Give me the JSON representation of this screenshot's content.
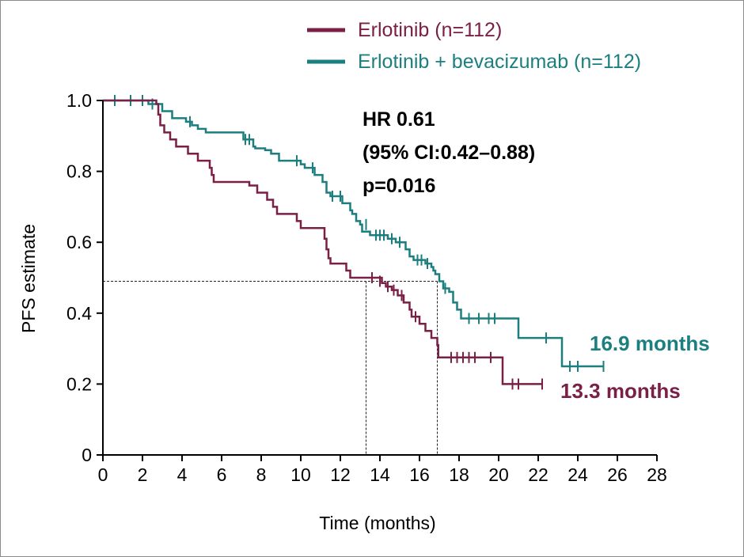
{
  "chart_data": {
    "type": "line",
    "subtype": "kaplan-meier",
    "xlabel": "Time (months)",
    "ylabel": "PFS estimate",
    "xlim": [
      0,
      28
    ],
    "ylim": [
      0,
      1
    ],
    "x_ticks": [
      "0",
      "2",
      "4",
      "6",
      "8",
      "10",
      "12",
      "14",
      "16",
      "18",
      "20",
      "22",
      "24",
      "26",
      "28"
    ],
    "y_ticks": [
      "0",
      "0.2",
      "0.4",
      "0.6",
      "0.8",
      "1.0"
    ],
    "legend_position": "top-right",
    "annotations": {
      "hr": "HR 0.61",
      "ci": "(95% CI:0.42–0.88)",
      "p": "p=0.016"
    },
    "median_reference_y": 0.49,
    "series": [
      {
        "name": "Erlotinib (n=112)",
        "color": "#7a1f45",
        "median_label": "13.3 months",
        "median_x": 13.3,
        "steps": [
          [
            0,
            1.0
          ],
          [
            2.7,
            0.99
          ],
          [
            2.8,
            0.96
          ],
          [
            2.9,
            0.93
          ],
          [
            3.1,
            0.91
          ],
          [
            3.4,
            0.89
          ],
          [
            3.7,
            0.87
          ],
          [
            4.3,
            0.85
          ],
          [
            4.8,
            0.83
          ],
          [
            5.4,
            0.81
          ],
          [
            5.5,
            0.79
          ],
          [
            5.6,
            0.77
          ],
          [
            7.4,
            0.76
          ],
          [
            7.8,
            0.74
          ],
          [
            8.3,
            0.72
          ],
          [
            8.6,
            0.7
          ],
          [
            8.8,
            0.68
          ],
          [
            9.8,
            0.66
          ],
          [
            10.0,
            0.64
          ],
          [
            11.2,
            0.61
          ],
          [
            11.3,
            0.58
          ],
          [
            11.4,
            0.555
          ],
          [
            11.5,
            0.54
          ],
          [
            12.3,
            0.52
          ],
          [
            12.5,
            0.5
          ],
          [
            14.1,
            0.485
          ],
          [
            14.3,
            0.475
          ],
          [
            14.6,
            0.465
          ],
          [
            14.9,
            0.45
          ],
          [
            15.2,
            0.43
          ],
          [
            15.5,
            0.41
          ],
          [
            15.6,
            0.39
          ],
          [
            16.0,
            0.37
          ],
          [
            16.3,
            0.35
          ],
          [
            16.6,
            0.33
          ],
          [
            16.9,
            0.31
          ],
          [
            16.95,
            0.275
          ],
          [
            20.2,
            0.2
          ]
        ],
        "end_x": 22.2,
        "censored": [
          [
            13.6,
            0.5
          ],
          [
            14.0,
            0.49
          ],
          [
            14.4,
            0.475
          ],
          [
            14.7,
            0.465
          ],
          [
            15.1,
            0.45
          ],
          [
            15.8,
            0.39
          ],
          [
            17.6,
            0.275
          ],
          [
            17.9,
            0.275
          ],
          [
            18.2,
            0.275
          ],
          [
            18.5,
            0.275
          ],
          [
            18.8,
            0.275
          ],
          [
            19.6,
            0.275
          ],
          [
            20.7,
            0.2
          ],
          [
            21.0,
            0.2
          ],
          [
            22.2,
            0.2
          ]
        ]
      },
      {
        "name": "Erlotinib + bevacizumab (n=112)",
        "color": "#1b7f80",
        "median_label": "16.9 months",
        "median_x": 16.9,
        "steps": [
          [
            0,
            1.0
          ],
          [
            2.3,
            0.99
          ],
          [
            3.0,
            0.97
          ],
          [
            3.5,
            0.95
          ],
          [
            4.2,
            0.94
          ],
          [
            4.5,
            0.93
          ],
          [
            4.8,
            0.92
          ],
          [
            5.2,
            0.91
          ],
          [
            7.1,
            0.89
          ],
          [
            7.6,
            0.87
          ],
          [
            7.7,
            0.865
          ],
          [
            8.2,
            0.86
          ],
          [
            8.5,
            0.85
          ],
          [
            8.9,
            0.83
          ],
          [
            10.0,
            0.82
          ],
          [
            10.2,
            0.81
          ],
          [
            10.7,
            0.79
          ],
          [
            11.1,
            0.77
          ],
          [
            11.3,
            0.74
          ],
          [
            11.5,
            0.73
          ],
          [
            12.1,
            0.71
          ],
          [
            12.5,
            0.69
          ],
          [
            12.6,
            0.68
          ],
          [
            12.8,
            0.66
          ],
          [
            13.0,
            0.65
          ],
          [
            13.1,
            0.63
          ],
          [
            13.5,
            0.62
          ],
          [
            14.4,
            0.61
          ],
          [
            14.8,
            0.6
          ],
          [
            15.3,
            0.58
          ],
          [
            15.5,
            0.56
          ],
          [
            15.7,
            0.55
          ],
          [
            16.3,
            0.54
          ],
          [
            16.6,
            0.53
          ],
          [
            16.7,
            0.52
          ],
          [
            16.8,
            0.51
          ],
          [
            17.0,
            0.49
          ],
          [
            17.2,
            0.47
          ],
          [
            17.5,
            0.46
          ],
          [
            17.7,
            0.43
          ],
          [
            17.9,
            0.41
          ],
          [
            18.1,
            0.385
          ],
          [
            21.0,
            0.33
          ],
          [
            23.2,
            0.25
          ]
        ],
        "end_x": 25.3,
        "censored": [
          [
            0.6,
            1.0
          ],
          [
            1.4,
            1.0
          ],
          [
            2.0,
            1.0
          ],
          [
            2.5,
            0.99
          ],
          [
            4.4,
            0.94
          ],
          [
            7.2,
            0.89
          ],
          [
            7.4,
            0.89
          ],
          [
            9.8,
            0.83
          ],
          [
            10.6,
            0.81
          ],
          [
            11.6,
            0.73
          ],
          [
            12.0,
            0.73
          ],
          [
            13.3,
            0.65
          ],
          [
            13.8,
            0.62
          ],
          [
            14.0,
            0.62
          ],
          [
            14.2,
            0.62
          ],
          [
            14.6,
            0.61
          ],
          [
            15.0,
            0.6
          ],
          [
            15.9,
            0.55
          ],
          [
            16.1,
            0.55
          ],
          [
            16.4,
            0.54
          ],
          [
            17.3,
            0.47
          ],
          [
            18.5,
            0.385
          ],
          [
            19.0,
            0.385
          ],
          [
            19.5,
            0.385
          ],
          [
            19.8,
            0.385
          ],
          [
            22.4,
            0.33
          ],
          [
            23.6,
            0.25
          ],
          [
            24.0,
            0.25
          ],
          [
            25.3,
            0.25
          ]
        ]
      }
    ]
  }
}
